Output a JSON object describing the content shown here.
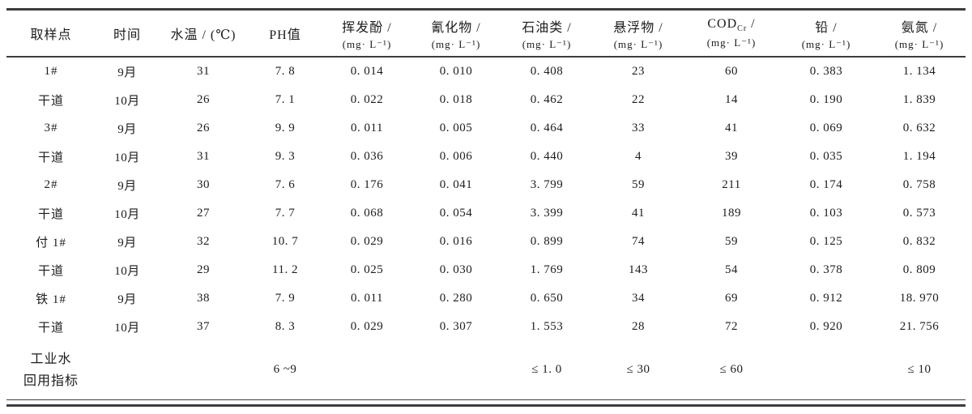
{
  "colors": {
    "background": "#ffffff",
    "text": "#1c1c1c",
    "rule": "#3d3d3d"
  },
  "table": {
    "columns": [
      {
        "name": "取样点",
        "unit": ""
      },
      {
        "name": "时间",
        "unit": ""
      },
      {
        "name": "水温 / (℃)",
        "unit": ""
      },
      {
        "name": "PH值",
        "unit": ""
      },
      {
        "name": "挥发酚 /",
        "unit": "(mg· L⁻¹)"
      },
      {
        "name": "氰化物 /",
        "unit": "(mg· L⁻¹)"
      },
      {
        "name": "石油类 /",
        "unit": "(mg· L⁻¹)"
      },
      {
        "name": "悬浮物 /",
        "unit": "(mg· L⁻¹)"
      },
      {
        "name_main": "COD",
        "name_sub": "Cr",
        "name_suffix": " /",
        "unit": "(mg· L⁻¹)"
      },
      {
        "name": "铅 /",
        "unit": "(mg· L⁻¹)"
      },
      {
        "name": "氨氮 /",
        "unit": "(mg· L⁻¹)"
      }
    ],
    "rows": [
      {
        "cells": [
          "1#",
          "9月",
          "31",
          "7. 8",
          "0. 014",
          "0. 010",
          "0. 408",
          "23",
          "60",
          "0. 383",
          "1. 134"
        ]
      },
      {
        "cells": [
          "干道",
          "10月",
          "26",
          "7. 1",
          "0. 022",
          "0. 018",
          "0. 462",
          "22",
          "14",
          "0. 190",
          "1. 839"
        ]
      },
      {
        "cells": [
          "3#",
          "9月",
          "26",
          "9. 9",
          "0. 011",
          "0. 005",
          "0. 464",
          "33",
          "41",
          "0. 069",
          "0. 632"
        ]
      },
      {
        "cells": [
          "干道",
          "10月",
          "31",
          "9. 3",
          "0. 036",
          "0. 006",
          "0. 440",
          "4",
          "39",
          "0. 035",
          "1. 194"
        ]
      },
      {
        "cells": [
          "2#",
          "9月",
          "30",
          "7. 6",
          "0. 176",
          "0. 041",
          "3. 799",
          "59",
          "211",
          "0. 174",
          "0. 758"
        ]
      },
      {
        "cells": [
          "干道",
          "10月",
          "27",
          "7. 7",
          "0. 068",
          "0. 054",
          "3. 399",
          "41",
          "189",
          "0. 103",
          "0. 573"
        ]
      },
      {
        "cells": [
          "付 1#",
          "9月",
          "32",
          "10. 7",
          "0. 029",
          "0. 016",
          "0. 899",
          "74",
          "59",
          "0. 125",
          "0. 832"
        ]
      },
      {
        "cells": [
          "干道",
          "10月",
          "29",
          "11. 2",
          "0. 025",
          "0. 030",
          "1. 769",
          "143",
          "54",
          "0. 378",
          "0. 809"
        ]
      },
      {
        "cells": [
          "铁 1#",
          "9月",
          "38",
          "7. 9",
          "0. 011",
          "0. 280",
          "0. 650",
          "34",
          "69",
          "0. 912",
          "18. 970"
        ]
      },
      {
        "cells": [
          "干道",
          "10月",
          "37",
          "8. 3",
          "0. 029",
          "0. 307",
          "1. 553",
          "28",
          "72",
          "0. 920",
          "21. 756"
        ]
      },
      {
        "cells": [
          "工业水\n回用指标",
          "",
          "",
          "6 ~9",
          "",
          "",
          "≤ 1. 0",
          "≤ 30",
          "≤ 60",
          "",
          "≤ 10"
        ]
      }
    ]
  }
}
